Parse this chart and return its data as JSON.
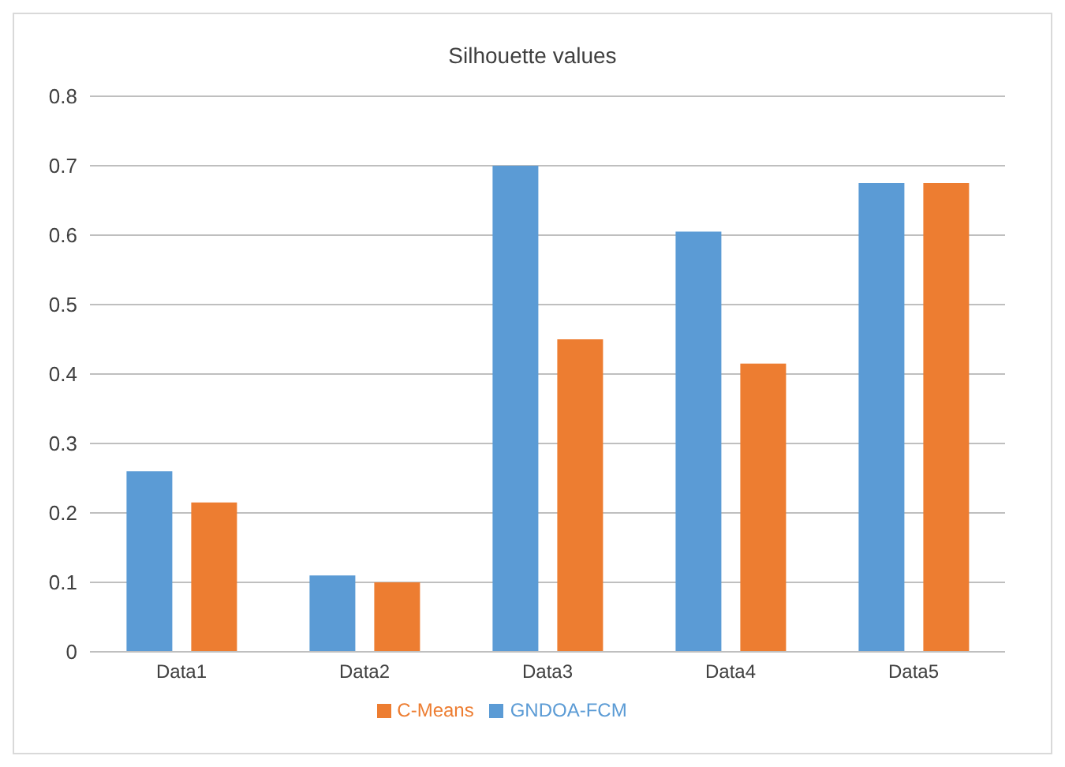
{
  "chart_data": {
    "type": "bar",
    "title": "Silhouette values",
    "categories": [
      "Data1",
      "Data2",
      "Data3",
      "Data4",
      "Data5"
    ],
    "series": [
      {
        "name": "GNDOA-FCM",
        "color": "#5b9bd5",
        "values": [
          0.26,
          0.11,
          0.7,
          0.605,
          0.675
        ]
      },
      {
        "name": "C-Means",
        "color": "#ed7d31",
        "values": [
          0.215,
          0.1,
          0.45,
          0.415,
          0.675
        ]
      }
    ],
    "ylim": [
      0,
      0.8
    ],
    "yticks": [
      0,
      0.1,
      0.2,
      0.3,
      0.4,
      0.5,
      0.6,
      0.7,
      0.8
    ],
    "grid": "y",
    "legend": "bottom"
  }
}
